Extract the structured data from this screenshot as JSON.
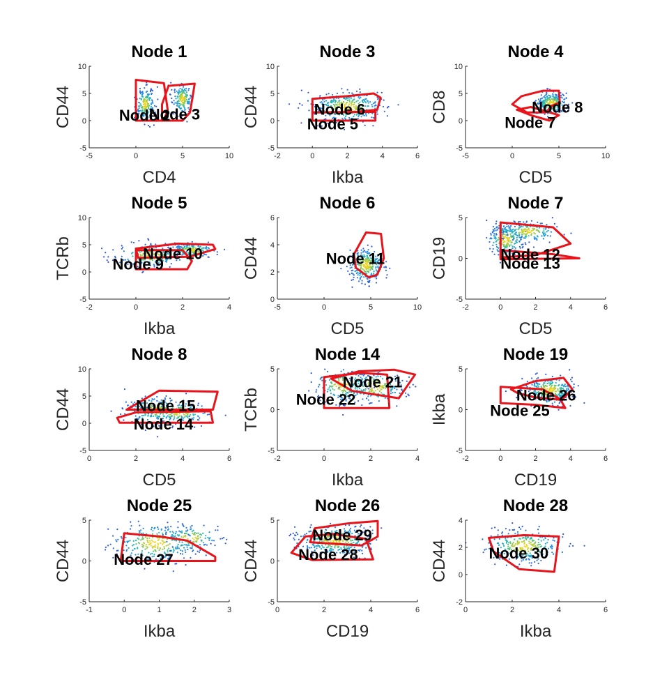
{
  "figure": {
    "background": "#ffffff",
    "gate_color": "#e8141b"
  },
  "chart_data": [
    {
      "type": "scatter",
      "title": "Node 1",
      "xlabel": "CD4",
      "ylabel": "CD44",
      "xlim": [
        -5,
        10
      ],
      "ylim": [
        -5,
        10
      ],
      "xticks": [
        "-5",
        "0",
        "5",
        "10"
      ],
      "yticks": [
        "-5",
        "0",
        "5",
        "10"
      ],
      "density_clusters": [
        {
          "cx": 1.0,
          "cy": 3.0,
          "sx": 0.5,
          "sy": 1.5,
          "n": 180
        },
        {
          "cx": 5.0,
          "cy": 4.0,
          "sx": 0.5,
          "sy": 1.4,
          "n": 180
        }
      ],
      "gates": [
        {
          "label": "Node 2",
          "polygon": [
            [
              0,
              7.5
            ],
            [
              3,
              6.9
            ],
            [
              3.4,
              2
            ],
            [
              3,
              0
            ],
            [
              0,
              0
            ],
            [
              0,
              4
            ]
          ],
          "label_at": [
            -1.8,
            1
          ]
        },
        {
          "label": "Node 3",
          "polygon": [
            [
              3.5,
              6.4
            ],
            [
              6.3,
              6.8
            ],
            [
              5.8,
              1.5
            ],
            [
              5,
              0
            ],
            [
              2.8,
              0
            ],
            [
              2.8,
              3
            ]
          ],
          "label_at": [
            1.4,
            1.2
          ]
        }
      ]
    },
    {
      "type": "scatter",
      "title": "Node 3",
      "xlabel": "Ikba",
      "ylabel": "CD44",
      "xlim": [
        -2,
        6
      ],
      "ylim": [
        -5,
        10
      ],
      "xticks": [
        "-2",
        "0",
        "2",
        "4",
        "6"
      ],
      "yticks": [
        "-5",
        "0",
        "5",
        "10"
      ],
      "density_clusters": [
        {
          "cx": 2.0,
          "cy": 2.5,
          "sx": 1.0,
          "sy": 1.4,
          "n": 360
        }
      ],
      "gates": [
        {
          "label": "Node 6",
          "polygon": [
            [
              0,
              4
            ],
            [
              2,
              4.5
            ],
            [
              3.5,
              5
            ],
            [
              3.9,
              4.2
            ],
            [
              3.7,
              2
            ],
            [
              2.5,
              1.6
            ],
            [
              0,
              1.5
            ]
          ],
          "label_at": [
            0.1,
            2.1
          ]
        },
        {
          "label": "Node 5",
          "polygon": [
            [
              0,
              1.5
            ],
            [
              3.6,
              1.6
            ],
            [
              3.6,
              0
            ],
            [
              0,
              0
            ]
          ],
          "label_at": [
            -0.3,
            -0.6
          ]
        }
      ]
    },
    {
      "type": "scatter",
      "title": "Node 4",
      "xlabel": "CD5",
      "ylabel": "CD8",
      "xlim": [
        -5,
        10
      ],
      "ylim": [
        -5,
        10
      ],
      "xticks": [
        "-5",
        "0",
        "5",
        "10"
      ],
      "yticks": [
        "-5",
        "0",
        "5",
        "10"
      ],
      "density_clusters": [
        {
          "cx": 4.2,
          "cy": 3.2,
          "sx": 0.8,
          "sy": 1.0,
          "n": 260
        }
      ],
      "gates": [
        {
          "label": "Node 8",
          "polygon": [
            [
              0,
              3
            ],
            [
              1,
              4.5
            ],
            [
              3.3,
              5.5
            ],
            [
              5,
              5.5
            ],
            [
              5.1,
              3.3
            ],
            [
              4.3,
              2.8
            ],
            [
              3.6,
              1.5
            ],
            [
              1.6,
              1.5
            ]
          ],
          "label_at": [
            2.1,
            2.5
          ]
        },
        {
          "label": "Node 7",
          "polygon": [
            [
              0.5,
              2
            ],
            [
              2,
              1
            ],
            [
              4,
              0
            ],
            [
              5,
              1
            ],
            [
              4.6,
              1.2
            ],
            [
              2,
              2.5
            ]
          ],
          "label_at": [
            -0.8,
            -0.3
          ]
        }
      ]
    },
    {
      "type": "scatter",
      "title": "Node 5",
      "xlabel": "Ikba",
      "ylabel": "TCRb",
      "xlim": [
        -2,
        4
      ],
      "ylim": [
        -5,
        10
      ],
      "xticks": [
        "-2",
        "0",
        "2",
        "4"
      ],
      "yticks": [
        "-5",
        "0",
        "5",
        "10"
      ],
      "density_clusters": [
        {
          "cx": 0.6,
          "cy": 3.0,
          "sx": 0.7,
          "sy": 1.0,
          "n": 220
        },
        {
          "cx": 2.4,
          "cy": 4.0,
          "sx": 0.5,
          "sy": 0.6,
          "n": 160
        }
      ],
      "gates": [
        {
          "label": "Node 9",
          "polygon": [
            [
              0,
              4
            ],
            [
              2,
              4
            ],
            [
              2.4,
              2
            ],
            [
              2.2,
              0.5
            ],
            [
              0,
              0.5
            ]
          ],
          "label_at": [
            -1,
            1.5
          ]
        },
        {
          "label": "Node 10",
          "polygon": [
            [
              0,
              4.3
            ],
            [
              1.8,
              5.2
            ],
            [
              3.3,
              5
            ],
            [
              3.4,
              4.2
            ],
            [
              2.3,
              2.8
            ],
            [
              0.1,
              2.6
            ]
          ],
          "label_at": [
            0.3,
            3.4
          ]
        }
      ]
    },
    {
      "type": "scatter",
      "title": "Node 6",
      "xlabel": "CD5",
      "ylabel": "CD44",
      "xlim": [
        -5,
        10
      ],
      "ylim": [
        0,
        6
      ],
      "xticks": [
        "-5",
        "0",
        "5",
        "10"
      ],
      "yticks": [
        "0",
        "2",
        "4",
        "6"
      ],
      "density_clusters": [
        {
          "cx": 4.5,
          "cy": 2.5,
          "sx": 0.9,
          "sy": 0.6,
          "n": 320
        }
      ],
      "gates": [
        {
          "label": "Node 11",
          "polygon": [
            [
              4.5,
              4.9
            ],
            [
              6.1,
              4.8
            ],
            [
              6.4,
              3
            ],
            [
              5.7,
              1.8
            ],
            [
              4.8,
              1.6
            ],
            [
              3.4,
              2.3
            ],
            [
              3.2,
              3.3
            ]
          ],
          "label_at": [
            0.2,
            3
          ]
        }
      ]
    },
    {
      "type": "scatter",
      "title": "Node 7",
      "xlabel": "CD5",
      "ylabel": "CD19",
      "xlim": [
        -2,
        6
      ],
      "ylim": [
        -5,
        5
      ],
      "xticks": [
        "-2",
        "0",
        "2",
        "4",
        "6"
      ],
      "yticks": [
        "-5",
        "0",
        "5"
      ],
      "density_clusters": [
        {
          "cx": 0.3,
          "cy": 2.3,
          "sx": 0.5,
          "sy": 1.0,
          "n": 240
        },
        {
          "cx": 1.6,
          "cy": 3.3,
          "sx": 0.8,
          "sy": 0.6,
          "n": 160
        }
      ],
      "gates": [
        {
          "label": "Node 12",
          "polygon": [
            [
              0,
              4.4
            ],
            [
              3,
              3.8
            ],
            [
              4,
              1.8
            ],
            [
              2,
              0.4
            ],
            [
              0,
              0.1
            ]
          ],
          "label_at": [
            0,
            0.5
          ]
        },
        {
          "label": "Node 13",
          "polygon": [
            [
              0,
              1
            ],
            [
              3,
              0.5
            ],
            [
              4.5,
              0
            ],
            [
              0,
              -0.1
            ]
          ],
          "label_at": [
            0,
            -0.6
          ]
        }
      ]
    },
    {
      "type": "scatter",
      "title": "Node 8",
      "xlabel": "CD5",
      "ylabel": "CD44",
      "xlim": [
        0,
        6
      ],
      "ylim": [
        -5,
        10
      ],
      "xticks": [
        "0",
        "2",
        "4",
        "6"
      ],
      "yticks": [
        "-5",
        "0",
        "5",
        "10"
      ],
      "density_clusters": [
        {
          "cx": 2.8,
          "cy": 2.5,
          "sx": 0.6,
          "sy": 1.2,
          "n": 200
        },
        {
          "cx": 3.8,
          "cy": 2.0,
          "sx": 0.7,
          "sy": 1.0,
          "n": 160
        }
      ],
      "gates": [
        {
          "label": "Node 15",
          "polygon": [
            [
              2,
              3.5
            ],
            [
              3,
              6
            ],
            [
              5.5,
              5.8
            ],
            [
              5.3,
              2.5
            ],
            [
              1.6,
              2.5
            ]
          ],
          "label_at": [
            2,
            3.3
          ]
        },
        {
          "label": "Node 14",
          "polygon": [
            [
              1.2,
              1
            ],
            [
              2,
              2
            ],
            [
              5.2,
              2.2
            ],
            [
              5.3,
              0.1
            ],
            [
              1.3,
              0.1
            ]
          ],
          "label_at": [
            1.9,
            -0.1
          ]
        }
      ]
    },
    {
      "type": "scatter",
      "title": "Node 14",
      "xlabel": "Ikba",
      "ylabel": "TCRb",
      "xlim": [
        -2,
        4
      ],
      "ylim": [
        -5,
        5
      ],
      "xticks": [
        "-2",
        "0",
        "2",
        "4"
      ],
      "yticks": [
        "-5",
        "0",
        "5"
      ],
      "density_clusters": [
        {
          "cx": 0.8,
          "cy": 3.0,
          "sx": 0.6,
          "sy": 1.0,
          "n": 220
        },
        {
          "cx": 2.2,
          "cy": 2.8,
          "sx": 0.6,
          "sy": 1.0,
          "n": 180
        }
      ],
      "gates": [
        {
          "label": "Node 21",
          "polygon": [
            [
              0.3,
              3.8
            ],
            [
              1.5,
              4.7
            ],
            [
              3,
              4.9
            ],
            [
              3.9,
              4.3
            ],
            [
              3.2,
              1.4
            ],
            [
              1.2,
              2.3
            ]
          ],
          "label_at": [
            0.8,
            3.4
          ]
        },
        {
          "label": "Node 22",
          "polygon": [
            [
              0,
              4
            ],
            [
              1.6,
              4.5
            ],
            [
              2.7,
              4.3
            ],
            [
              2.8,
              0.2
            ],
            [
              0,
              0.2
            ]
          ],
          "label_at": [
            -1.2,
            1.3
          ]
        }
      ]
    },
    {
      "type": "scatter",
      "title": "Node 19",
      "xlabel": "CD19",
      "ylabel": "Ikba",
      "xlim": [
        -2,
        6
      ],
      "ylim": [
        -5,
        5
      ],
      "xticks": [
        "-2",
        "0",
        "2",
        "4",
        "6"
      ],
      "yticks": [
        "-5",
        "0",
        "5"
      ],
      "density_clusters": [
        {
          "cx": 2.8,
          "cy": 2.4,
          "sx": 0.7,
          "sy": 0.8,
          "n": 300
        }
      ],
      "gates": [
        {
          "label": "Node 26",
          "polygon": [
            [
              0.6,
              2.5
            ],
            [
              2,
              3.5
            ],
            [
              3.6,
              3.9
            ],
            [
              4.1,
              2.5
            ],
            [
              3.5,
              1.2
            ],
            [
              2,
              1.5
            ],
            [
              1,
              2
            ]
          ],
          "label_at": [
            0.9,
            1.8
          ]
        },
        {
          "label": "Node 25",
          "polygon": [
            [
              0,
              2.8
            ],
            [
              2.4,
              2.5
            ],
            [
              3.4,
              1.3
            ],
            [
              3.7,
              0.2
            ],
            [
              2,
              0.6
            ],
            [
              0,
              0.8
            ]
          ],
          "label_at": [
            -0.6,
            -0.1
          ]
        }
      ]
    },
    {
      "type": "scatter",
      "title": "Node 25",
      "xlabel": "Ikba",
      "ylabel": "CD44",
      "xlim": [
        -1,
        3
      ],
      "ylim": [
        -5,
        5
      ],
      "xticks": [
        "-1",
        "0",
        "1",
        "2",
        "3"
      ],
      "yticks": [
        "-5",
        "0",
        "5"
      ],
      "density_clusters": [
        {
          "cx": 0.9,
          "cy": 2.2,
          "sx": 0.6,
          "sy": 1.2,
          "n": 300
        },
        {
          "cx": 1.9,
          "cy": 2.8,
          "sx": 0.4,
          "sy": 0.8,
          "n": 120
        }
      ],
      "gates": [
        {
          "label": "Node 27",
          "polygon": [
            [
              0,
              3.4
            ],
            [
              1,
              3
            ],
            [
              1.8,
              2.5
            ],
            [
              2.6,
              0.5
            ],
            [
              2.6,
              0
            ],
            [
              -0.1,
              0
            ]
          ],
          "label_at": [
            -0.3,
            0.2
          ]
        }
      ]
    },
    {
      "type": "scatter",
      "title": "Node 26",
      "xlabel": "CD19",
      "ylabel": "CD44",
      "xlim": [
        0,
        6
      ],
      "ylim": [
        -5,
        5
      ],
      "xticks": [
        "0",
        "2",
        "4",
        "6"
      ],
      "yticks": [
        "-5",
        "0",
        "5"
      ],
      "density_clusters": [
        {
          "cx": 2.5,
          "cy": 2.5,
          "sx": 0.8,
          "sy": 0.9,
          "n": 340
        }
      ],
      "gates": [
        {
          "label": "Node 29",
          "polygon": [
            [
              1.6,
              4
            ],
            [
              3,
              4.6
            ],
            [
              4.3,
              4.9
            ],
            [
              4.3,
              3
            ],
            [
              3.6,
              1.9
            ],
            [
              1.4,
              2.3
            ]
          ],
          "label_at": [
            1.5,
            3.2
          ]
        },
        {
          "label": "Node 28",
          "polygon": [
            [
              0.6,
              1
            ],
            [
              1.2,
              3
            ],
            [
              2.4,
              3.3
            ],
            [
              3.8,
              2.7
            ],
            [
              4.1,
              0.2
            ],
            [
              1.5,
              0.1
            ]
          ],
          "label_at": [
            0.9,
            0.8
          ]
        }
      ]
    },
    {
      "type": "scatter",
      "title": "Node 28",
      "xlabel": "Ikba",
      "ylabel": "CD44",
      "xlim": [
        0,
        6
      ],
      "ylim": [
        -2,
        4
      ],
      "xticks": [
        "0",
        "2",
        "4",
        "6"
      ],
      "yticks": [
        "-2",
        "0",
        "2",
        "4"
      ],
      "density_clusters": [
        {
          "cx": 2.5,
          "cy": 2.1,
          "sx": 0.8,
          "sy": 0.6,
          "n": 300
        }
      ],
      "gates": [
        {
          "label": "Node 30",
          "polygon": [
            [
              1,
              2.7
            ],
            [
              2.5,
              2.9
            ],
            [
              4,
              2.8
            ],
            [
              3.8,
              0.2
            ],
            [
              2.3,
              0.4
            ],
            [
              1.2,
              1.7
            ]
          ],
          "label_at": [
            1,
            1.6
          ]
        }
      ]
    }
  ]
}
